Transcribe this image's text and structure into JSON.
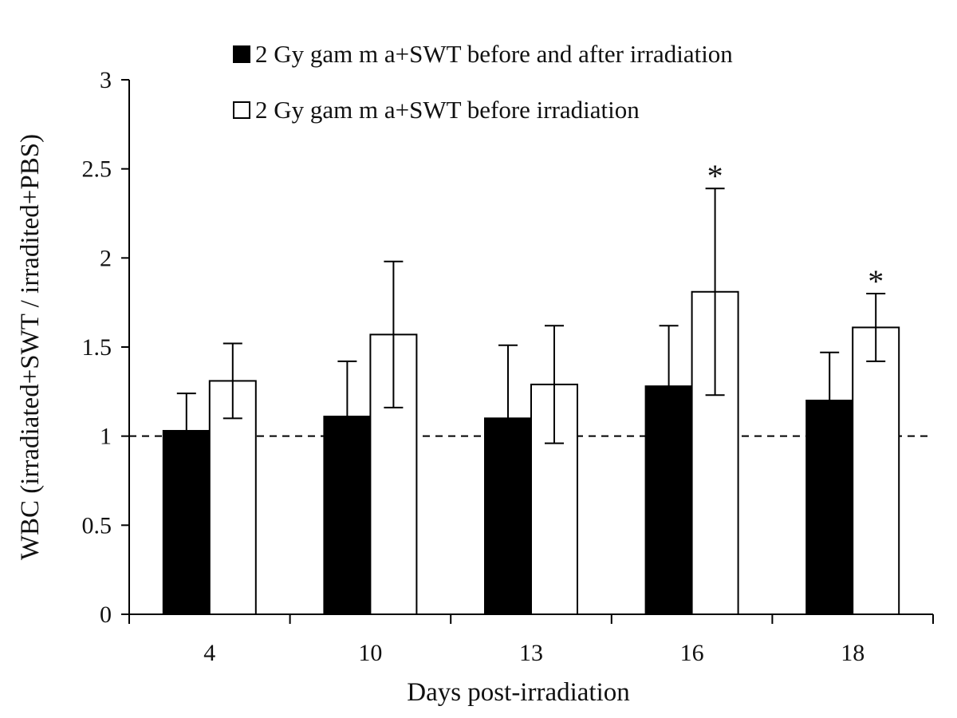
{
  "chart_data": {
    "type": "bar",
    "title": "",
    "xlabel": "Days  post-irradiation",
    "ylabel": "WBC  (irradiated+SWT  / irradited+PBS)",
    "ylim": [
      0,
      3
    ],
    "yticks": [
      "0",
      "0.5",
      "1",
      "1.5",
      "2",
      "2.5",
      "3"
    ],
    "categories": [
      "4",
      "10",
      "13",
      "16",
      "18"
    ],
    "legend_position": "top",
    "grid": false,
    "reference_line": {
      "y": 1,
      "style": "dashed"
    },
    "series": [
      {
        "name": "2 Gy  gam m a+SWT before and after irradiation",
        "color": "#000000",
        "values": [
          1.03,
          1.11,
          1.1,
          1.28,
          1.2
        ],
        "errors": [
          0.21,
          0.31,
          0.41,
          0.34,
          0.27
        ]
      },
      {
        "name": "2 Gy  gam m a+SWT before irradiation",
        "color": "#ffffff",
        "values": [
          1.31,
          1.57,
          1.29,
          1.81,
          1.61
        ],
        "errors": [
          0.21,
          0.41,
          0.33,
          0.58,
          0.19
        ]
      }
    ],
    "annotations": [
      {
        "text": "*",
        "category": "16",
        "series": 1
      },
      {
        "text": "*",
        "category": "18",
        "series": 1
      }
    ]
  }
}
